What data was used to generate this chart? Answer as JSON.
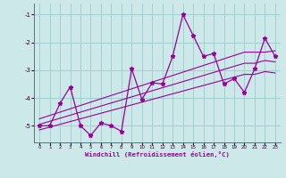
{
  "xlabel": "Windchill (Refroidissement éolien,°C)",
  "bg_color": "#cce8e8",
  "line_color": "#990099",
  "grid_color": "#99cccc",
  "xlim": [
    -0.5,
    23.5
  ],
  "ylim": [
    -5.6,
    -0.6
  ],
  "xticks": [
    0,
    1,
    2,
    3,
    4,
    5,
    6,
    7,
    8,
    9,
    10,
    11,
    12,
    13,
    14,
    15,
    16,
    17,
    18,
    19,
    20,
    21,
    22,
    23
  ],
  "yticks": [
    -5,
    -4,
    -3,
    -2,
    -1
  ],
  "x_data": [
    0,
    1,
    2,
    3,
    4,
    5,
    6,
    7,
    8,
    9,
    10,
    11,
    12,
    13,
    14,
    15,
    16,
    17,
    18,
    19,
    20,
    21,
    22,
    23
  ],
  "y_main": [
    -5.0,
    -5.0,
    -4.2,
    -3.6,
    -5.0,
    -5.35,
    -4.9,
    -5.0,
    -5.2,
    -2.95,
    -4.05,
    -3.45,
    -3.5,
    -2.5,
    -1.0,
    -1.75,
    -2.5,
    -2.4,
    -3.5,
    -3.3,
    -3.8,
    -2.95,
    -1.85,
    -2.5
  ],
  "y_trend1": [
    -4.75,
    -4.63,
    -4.51,
    -4.39,
    -4.27,
    -4.15,
    -4.03,
    -3.91,
    -3.79,
    -3.67,
    -3.55,
    -3.43,
    -3.31,
    -3.19,
    -3.07,
    -2.95,
    -2.83,
    -2.71,
    -2.59,
    -2.47,
    -2.35,
    -2.35,
    -2.35,
    -2.3
  ],
  "y_trend2": [
    -4.95,
    -4.84,
    -4.73,
    -4.62,
    -4.51,
    -4.4,
    -4.29,
    -4.18,
    -4.07,
    -3.96,
    -3.85,
    -3.74,
    -3.63,
    -3.52,
    -3.41,
    -3.3,
    -3.19,
    -3.08,
    -2.97,
    -2.86,
    -2.75,
    -2.75,
    -2.65,
    -2.7
  ],
  "y_trend3": [
    -5.15,
    -5.05,
    -4.95,
    -4.85,
    -4.75,
    -4.65,
    -4.55,
    -4.45,
    -4.35,
    -4.25,
    -4.15,
    -4.05,
    -3.95,
    -3.85,
    -3.75,
    -3.65,
    -3.55,
    -3.45,
    -3.35,
    -3.25,
    -3.15,
    -3.15,
    -3.05,
    -3.1
  ]
}
